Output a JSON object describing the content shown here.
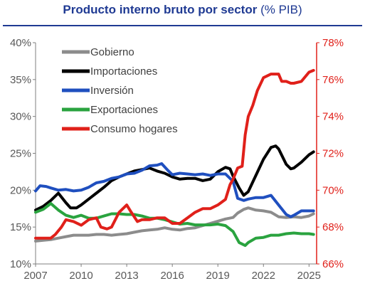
{
  "title": {
    "main": "Producto interno bruto por sector",
    "unit": "(% PIB)"
  },
  "chart_data": {
    "type": "line",
    "title": "Producto interno bruto por sector (% PIB)",
    "x_ticks": [
      "2007",
      "2010",
      "2013",
      "2016",
      "2019",
      "2022",
      "2025"
    ],
    "xlim": [
      2007,
      2025.5
    ],
    "y_left": {
      "ticks": [
        "10%",
        "15%",
        "20%",
        "25%",
        "30%",
        "35%",
        "40%"
      ],
      "ylim": [
        10,
        40
      ]
    },
    "y_right": {
      "ticks": [
        "66%",
        "68%",
        "70%",
        "72%",
        "74%",
        "76%",
        "78%"
      ],
      "ylim": [
        66,
        78
      ],
      "color": "#e0201a"
    },
    "legend_position": "top-left",
    "grid": false,
    "series": [
      {
        "name": "Gobierno",
        "color": "#8c8c8c",
        "axis": "left",
        "points": [
          [
            2007,
            13.1
          ],
          [
            2007.5,
            13.2
          ],
          [
            2008,
            13.3
          ],
          [
            2008.5,
            13.5
          ],
          [
            2009,
            13.7
          ],
          [
            2009.5,
            13.9
          ],
          [
            2010,
            13.9
          ],
          [
            2010.5,
            13.9
          ],
          [
            2011,
            14.0
          ],
          [
            2011.5,
            14.0
          ],
          [
            2012,
            13.9
          ],
          [
            2012.5,
            14.0
          ],
          [
            2013,
            14.1
          ],
          [
            2013.5,
            14.3
          ],
          [
            2014,
            14.5
          ],
          [
            2014.5,
            14.6
          ],
          [
            2015,
            14.7
          ],
          [
            2015.5,
            14.9
          ],
          [
            2016,
            14.7
          ],
          [
            2016.5,
            14.6
          ],
          [
            2017,
            14.8
          ],
          [
            2017.5,
            14.9
          ],
          [
            2018,
            15.2
          ],
          [
            2018.5,
            15.5
          ],
          [
            2019,
            15.8
          ],
          [
            2019.5,
            16.1
          ],
          [
            2020,
            16.3
          ],
          [
            2020.3,
            16.9
          ],
          [
            2020.7,
            17.4
          ],
          [
            2021,
            17.6
          ],
          [
            2021.5,
            17.3
          ],
          [
            2022,
            17.2
          ],
          [
            2022.5,
            17.0
          ],
          [
            2023,
            16.4
          ],
          [
            2023.5,
            16.3
          ],
          [
            2024,
            16.4
          ],
          [
            2024.5,
            16.3
          ],
          [
            2025,
            16.5
          ],
          [
            2025.3,
            16.8
          ]
        ]
      },
      {
        "name": "Importaciones",
        "color": "#000000",
        "axis": "left",
        "points": [
          [
            2007,
            17.3
          ],
          [
            2007.5,
            17.8
          ],
          [
            2008,
            18.6
          ],
          [
            2008.5,
            19.6
          ],
          [
            2009,
            18.3
          ],
          [
            2009.3,
            17.6
          ],
          [
            2009.7,
            17.6
          ],
          [
            2010,
            18.0
          ],
          [
            2010.5,
            18.8
          ],
          [
            2011,
            19.6
          ],
          [
            2011.5,
            20.4
          ],
          [
            2012,
            21.3
          ],
          [
            2012.5,
            21.8
          ],
          [
            2013,
            22.2
          ],
          [
            2013.5,
            22.6
          ],
          [
            2014,
            22.8
          ],
          [
            2014.5,
            23.0
          ],
          [
            2015,
            22.6
          ],
          [
            2015.5,
            22.3
          ],
          [
            2016,
            21.8
          ],
          [
            2016.5,
            21.5
          ],
          [
            2017,
            21.6
          ],
          [
            2017.5,
            21.6
          ],
          [
            2018,
            21.3
          ],
          [
            2018.5,
            21.5
          ],
          [
            2019,
            22.5
          ],
          [
            2019.5,
            23.1
          ],
          [
            2019.8,
            22.9
          ],
          [
            2020,
            21.9
          ],
          [
            2020.4,
            20.3
          ],
          [
            2020.7,
            19.3
          ],
          [
            2021,
            19.8
          ],
          [
            2021.5,
            22.0
          ],
          [
            2022,
            24.2
          ],
          [
            2022.5,
            25.8
          ],
          [
            2022.8,
            26.0
          ],
          [
            2023,
            25.6
          ],
          [
            2023.5,
            23.5
          ],
          [
            2023.8,
            22.9
          ],
          [
            2024,
            23.0
          ],
          [
            2024.5,
            23.8
          ],
          [
            2025,
            24.8
          ],
          [
            2025.3,
            25.2
          ]
        ]
      },
      {
        "name": "Inversión",
        "color": "#1f4fbf",
        "axis": "left",
        "points": [
          [
            2007,
            19.9
          ],
          [
            2007.3,
            20.6
          ],
          [
            2007.7,
            20.5
          ],
          [
            2008,
            20.3
          ],
          [
            2008.5,
            20.0
          ],
          [
            2009,
            20.1
          ],
          [
            2009.5,
            19.9
          ],
          [
            2010,
            20.0
          ],
          [
            2010.5,
            20.4
          ],
          [
            2011,
            21.0
          ],
          [
            2011.5,
            21.2
          ],
          [
            2012,
            21.6
          ],
          [
            2012.5,
            21.8
          ],
          [
            2013,
            22.2
          ],
          [
            2013.5,
            22.3
          ],
          [
            2014,
            22.7
          ],
          [
            2014.5,
            23.3
          ],
          [
            2015,
            23.4
          ],
          [
            2015.3,
            23.6
          ],
          [
            2015.7,
            22.7
          ],
          [
            2016,
            22.1
          ],
          [
            2016.5,
            22.3
          ],
          [
            2017,
            22.2
          ],
          [
            2017.5,
            22.1
          ],
          [
            2018,
            22.2
          ],
          [
            2018.5,
            22.0
          ],
          [
            2019,
            22.2
          ],
          [
            2019.5,
            22.2
          ],
          [
            2020,
            21.2
          ],
          [
            2020.3,
            18.9
          ],
          [
            2020.7,
            18.6
          ],
          [
            2021,
            18.8
          ],
          [
            2021.5,
            19.0
          ],
          [
            2022,
            19.0
          ],
          [
            2022.5,
            19.3
          ],
          [
            2023,
            18.0
          ],
          [
            2023.5,
            16.7
          ],
          [
            2023.8,
            16.4
          ],
          [
            2024,
            16.6
          ],
          [
            2024.5,
            17.2
          ],
          [
            2025,
            17.2
          ],
          [
            2025.3,
            17.2
          ]
        ]
      },
      {
        "name": "Exportaciones",
        "color": "#2aa33f",
        "axis": "left",
        "points": [
          [
            2007,
            17.0
          ],
          [
            2007.5,
            17.4
          ],
          [
            2008,
            18.2
          ],
          [
            2008.5,
            17.3
          ],
          [
            2009,
            16.6
          ],
          [
            2009.5,
            16.3
          ],
          [
            2010,
            16.6
          ],
          [
            2010.5,
            16.2
          ],
          [
            2011,
            16.2
          ],
          [
            2011.5,
            16.5
          ],
          [
            2012,
            16.8
          ],
          [
            2012.5,
            16.8
          ],
          [
            2013,
            16.7
          ],
          [
            2013.5,
            16.7
          ],
          [
            2014,
            16.5
          ],
          [
            2014.5,
            16.2
          ],
          [
            2015,
            16.2
          ],
          [
            2015.5,
            16.0
          ],
          [
            2016,
            15.7
          ],
          [
            2016.5,
            15.4
          ],
          [
            2017,
            15.5
          ],
          [
            2017.5,
            15.3
          ],
          [
            2018,
            15.3
          ],
          [
            2018.5,
            15.3
          ],
          [
            2019,
            15.4
          ],
          [
            2019.5,
            15.2
          ],
          [
            2020,
            14.4
          ],
          [
            2020.4,
            12.9
          ],
          [
            2020.8,
            12.5
          ],
          [
            2021,
            12.9
          ],
          [
            2021.5,
            13.5
          ],
          [
            2022,
            13.6
          ],
          [
            2022.5,
            13.9
          ],
          [
            2023,
            13.9
          ],
          [
            2023.5,
            14.1
          ],
          [
            2024,
            14.2
          ],
          [
            2024.5,
            14.1
          ],
          [
            2025,
            14.1
          ],
          [
            2025.3,
            14.0
          ]
        ]
      },
      {
        "name": "Consumo hogares",
        "color": "#e0201a",
        "axis": "right",
        "points": [
          [
            2007,
            67.4
          ],
          [
            2007.5,
            67.4
          ],
          [
            2008,
            67.4
          ],
          [
            2008.3,
            67.6
          ],
          [
            2008.7,
            68.0
          ],
          [
            2009,
            68.4
          ],
          [
            2009.5,
            68.3
          ],
          [
            2010,
            68.1
          ],
          [
            2010.5,
            68.4
          ],
          [
            2011,
            68.5
          ],
          [
            2011.3,
            68.0
          ],
          [
            2011.7,
            67.9
          ],
          [
            2012,
            68.0
          ],
          [
            2012.5,
            68.8
          ],
          [
            2013,
            69.2
          ],
          [
            2013.3,
            68.8
          ],
          [
            2013.7,
            68.3
          ],
          [
            2014,
            68.4
          ],
          [
            2014.5,
            68.4
          ],
          [
            2015,
            68.5
          ],
          [
            2015.5,
            68.5
          ],
          [
            2016,
            68.2
          ],
          [
            2016.5,
            68.2
          ],
          [
            2017,
            68.5
          ],
          [
            2017.5,
            68.8
          ],
          [
            2018,
            69.0
          ],
          [
            2018.5,
            69.0
          ],
          [
            2019,
            69.2
          ],
          [
            2019.5,
            69.5
          ],
          [
            2019.8,
            70.3
          ],
          [
            2020,
            70.6
          ],
          [
            2020.3,
            71.2
          ],
          [
            2020.6,
            71.3
          ],
          [
            2020.8,
            73.0
          ],
          [
            2021,
            74.0
          ],
          [
            2021.3,
            74.6
          ],
          [
            2021.6,
            75.4
          ],
          [
            2022,
            76.1
          ],
          [
            2022.5,
            76.3
          ],
          [
            2023,
            76.3
          ],
          [
            2023.2,
            75.9
          ],
          [
            2023.5,
            75.9
          ],
          [
            2023.8,
            75.8
          ],
          [
            2024,
            75.8
          ],
          [
            2024.5,
            75.9
          ],
          [
            2025,
            76.4
          ],
          [
            2025.3,
            76.5
          ]
        ]
      }
    ]
  }
}
